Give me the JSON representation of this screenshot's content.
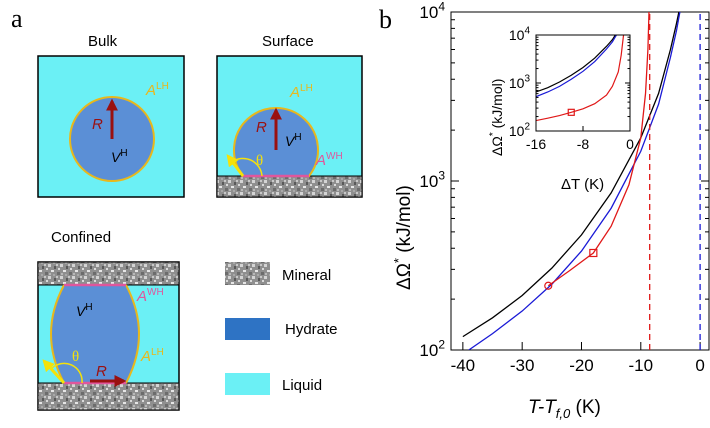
{
  "panel_a": {
    "label": "a",
    "bulk": {
      "title": "Bulk",
      "A_LH": "A",
      "A_LH_sup": "LH",
      "R": "R",
      "V_H": "V",
      "V_H_sup": "H"
    },
    "surface": {
      "title": "Surface",
      "A_LH": "A",
      "A_LH_sup": "LH",
      "A_WH": "A",
      "A_WH_sup": "WH",
      "R": "R",
      "V_H": "V",
      "V_H_sup": "H",
      "theta": "θ"
    },
    "confined": {
      "title": "Confined",
      "A_WH": "A",
      "A_WH_sup": "WH",
      "A_LH": "A",
      "A_LH_sup": "LH",
      "R": "R",
      "V_H": "V",
      "V_H_sup": "H",
      "theta": "θ"
    },
    "legend": [
      {
        "label": "Mineral",
        "swatch": "mineral"
      },
      {
        "label": "Hydrate",
        "swatch": "#2e73c4"
      },
      {
        "label": "Liquid",
        "swatch": "#6bf0f5"
      }
    ]
  },
  "colors": {
    "liquid": "#6bf0f5",
    "hydrate": "#5b8fd6",
    "interface_LH": "#e8b81c",
    "interface_WH": "#e0569c",
    "radius_arrow": "#9a1010",
    "theta_arrow": "#f5e10a",
    "black_curve": "#000000",
    "blue_curve": "#1a1ad6",
    "red_curve": "#e01818"
  },
  "chart_data": {
    "label": "b",
    "type": "line",
    "xlabel": "T-T",
    "xlabel_sub": "f,0",
    "xlabel_unit": " (K)",
    "ylabel": "ΔΩ",
    "ylabel_sup": "*",
    "ylabel_unit": " (kJ/mol)",
    "xlim": [
      -42,
      1.5
    ],
    "ylim": [
      100,
      10000
    ],
    "yscale": "log",
    "xticks": [
      -40,
      -30,
      -20,
      -10,
      0
    ],
    "xtick_labels": [
      "-40",
      "-30",
      "-20",
      "-10",
      "0"
    ],
    "yticks": [
      100,
      1000,
      10000
    ],
    "ytick_labels": [
      {
        "base": "10",
        "exp": "2"
      },
      {
        "base": "10",
        "exp": "3"
      },
      {
        "base": "10",
        "exp": "4"
      }
    ],
    "series": [
      {
        "color": "black",
        "dash": false,
        "x": [
          -40,
          -35,
          -30,
          -25,
          -20,
          -15,
          -10,
          -7,
          -5,
          -4,
          -3
        ],
        "y": [
          120,
          155,
          210,
          305,
          480,
          850,
          1800,
          3300,
          6000,
          8500,
          12500
        ]
      },
      {
        "color": "blue",
        "dash": false,
        "x": [
          -39,
          -35,
          -30,
          -25,
          -20,
          -15,
          -10,
          -7,
          -5,
          -4,
          -3.3
        ],
        "y": [
          100,
          125,
          170,
          245,
          385,
          690,
          1500,
          2850,
          5400,
          7700,
          10500
        ]
      },
      {
        "color": "red",
        "dash": false,
        "marker_points": [
          {
            "x": -25.6,
            "y": 240,
            "marker": "circle"
          },
          {
            "x": -18,
            "y": 375,
            "marker": "square"
          }
        ],
        "x": [
          -25.6,
          -22,
          -18,
          -15,
          -12,
          -10,
          -9.2,
          -8.8,
          -8.6
        ],
        "y": [
          240,
          295,
          375,
          540,
          950,
          1800,
          3300,
          6000,
          10500
        ]
      },
      {
        "color": "red",
        "dash": true,
        "x": [
          -8.5,
          -8.5
        ],
        "y": [
          100,
          10000
        ]
      },
      {
        "color": "blue",
        "dash": true,
        "x": [
          0,
          0
        ],
        "y": [
          100,
          10000
        ]
      }
    ],
    "inset": {
      "xlabel": "ΔT",
      "xlabel_unit": " (K)",
      "ylabel": "ΔΩ",
      "ylabel_sup": "*",
      "ylabel_unit": " (kJ/mol)",
      "xlim": [
        -16,
        0
      ],
      "ylim": [
        100,
        10000
      ],
      "yscale": "log",
      "xticks": [
        -16,
        -8,
        0
      ],
      "xtick_labels": [
        "-16",
        "-8",
        "0"
      ],
      "yticks": [
        100,
        1000,
        10000
      ],
      "ytick_labels": [
        {
          "base": "10",
          "exp": "2"
        },
        {
          "base": "10",
          "exp": "3"
        },
        {
          "base": "10",
          "exp": "4"
        }
      ],
      "series": [
        {
          "color": "black",
          "x": [
            -16,
            -14,
            -12,
            -10,
            -8,
            -6,
            -4,
            -3,
            -2.5
          ],
          "y": [
            650,
            800,
            1050,
            1450,
            2100,
            3300,
            5800,
            8000,
            10000
          ]
        },
        {
          "color": "blue",
          "x": [
            -16,
            -14,
            -12,
            -10,
            -8,
            -6,
            -4,
            -3,
            -2.3
          ],
          "y": [
            520,
            650,
            850,
            1200,
            1750,
            2800,
            5100,
            7200,
            10000
          ]
        },
        {
          "color": "red",
          "marker_points": [
            {
              "x": -10,
              "y": 245,
              "marker": "square"
            }
          ],
          "x": [
            -16,
            -14,
            -12,
            -10,
            -8,
            -6,
            -4,
            -3,
            -2,
            -1.5,
            -1.1
          ],
          "y": [
            165,
            185,
            210,
            245,
            290,
            370,
            560,
            850,
            1700,
            3800,
            10000
          ]
        }
      ]
    }
  }
}
